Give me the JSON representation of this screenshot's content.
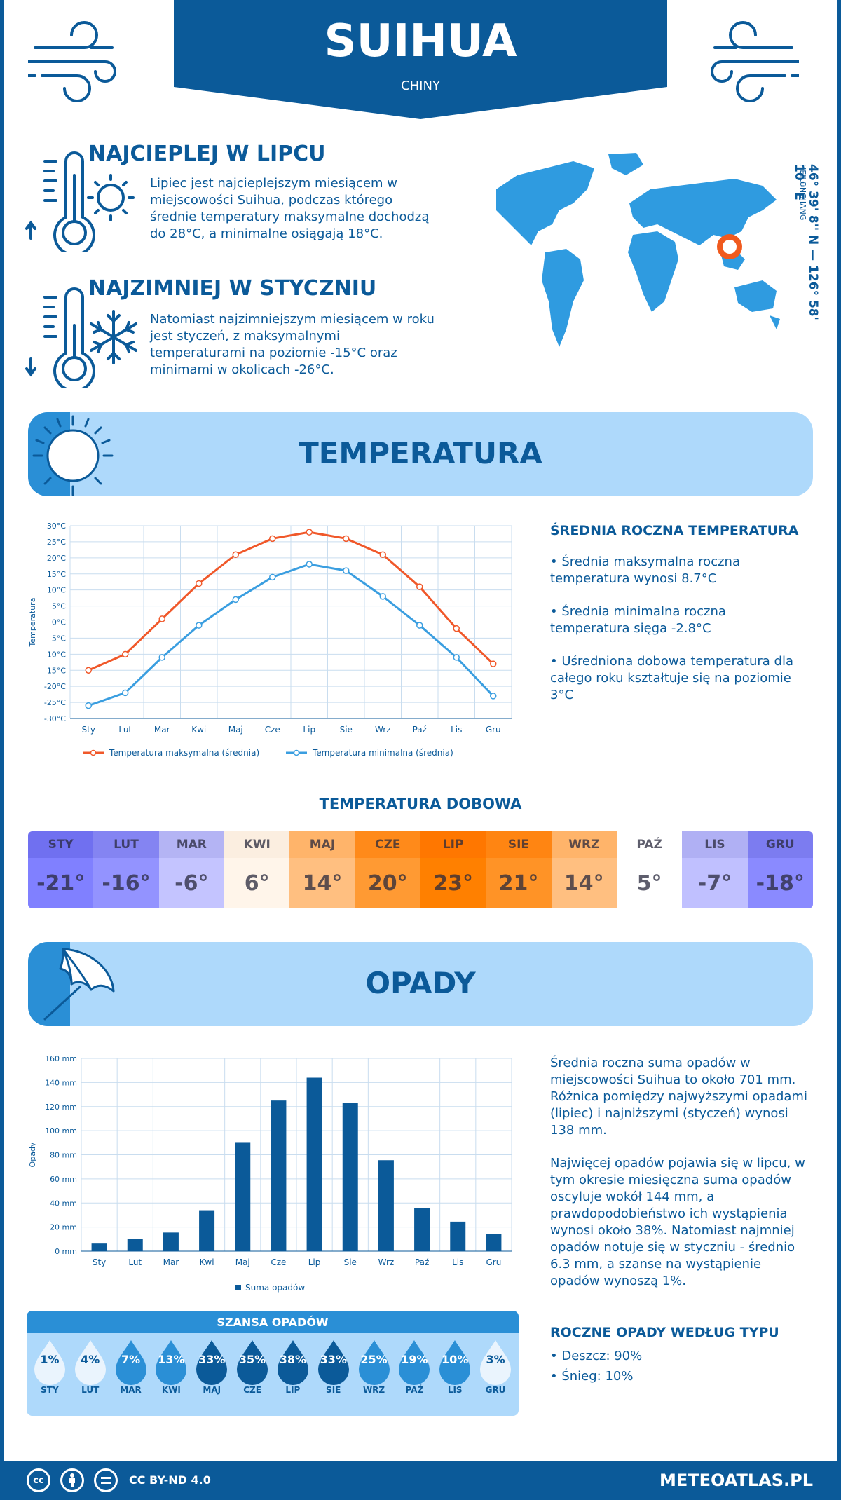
{
  "header": {
    "city": "SUIHUA",
    "country": "CHINY"
  },
  "coords": {
    "text": "46° 39' 8'' N — 126° 58' 10'' E",
    "region": "HEILONGJIANG"
  },
  "warmest": {
    "title": "NAJCIEPLEJ W LIPCU",
    "text": "Lipiec jest najcieplejszym miesiącem w miejscowości Suihua, podczas którego średnie temperatury maksymalne dochodzą do 28°C, a minimalne osiągają 18°C."
  },
  "coldest": {
    "title": "NAJZIMNIEJ W STYCZNIU",
    "text": "Natomiast najzimniejszym miesiącem w roku jest styczeń, z maksymalnymi temperaturami na poziomie -15°C oraz minimami w okolicach -26°C."
  },
  "temperature": {
    "banner": "TEMPERATURA",
    "side_title": "ŚREDNIA ROCZNA TEMPERATURA",
    "bullets": [
      "• Średnia maksymalna roczna temperatura wynosi 8.7°C",
      "• Średnia minimalna roczna temperatura sięga -2.8°C",
      "• Uśredniona dobowa temperatura dla całego roku kształtuje się na poziomie 3°C"
    ],
    "daily_title": "TEMPERATURA DOBOWA",
    "daily": [
      {
        "m": "STY",
        "v": "-21°",
        "hc": "#7070f0",
        "bc": "#8080ff"
      },
      {
        "m": "LUT",
        "v": "-16°",
        "hc": "#8484f2",
        "bc": "#9393ff"
      },
      {
        "m": "MAR",
        "v": "-6°",
        "hc": "#b4b4f4",
        "bc": "#c4c4ff"
      },
      {
        "m": "KWI",
        "v": "6°",
        "hc": "#fbeee0",
        "bc": "#fff5ea"
      },
      {
        "m": "MAJ",
        "v": "14°",
        "hc": "#ffb46a",
        "bc": "#ffbf80"
      },
      {
        "m": "CZE",
        "v": "20°",
        "hc": "#ff8a1a",
        "bc": "#ff9a33"
      },
      {
        "m": "LIP",
        "v": "23°",
        "hc": "#ff7700",
        "bc": "#ff8000"
      },
      {
        "m": "SIE",
        "v": "21°",
        "hc": "#ff8512",
        "bc": "#ff9326"
      },
      {
        "m": "WRZ",
        "v": "14°",
        "hc": "#ffb46a",
        "bc": "#ffbf80"
      },
      {
        "m": "PAŹ",
        "v": "5°",
        "hc": "#ffffff",
        "bc": "#ffffff"
      },
      {
        "m": "LIS",
        "v": "-7°",
        "hc": "#b0b0f4",
        "bc": "#c0c0ff"
      },
      {
        "m": "GRU",
        "v": "-18°",
        "hc": "#7c7cf0",
        "bc": "#8a8aff"
      }
    ]
  },
  "precip": {
    "banner": "OPADY",
    "text1": "Średnia roczna suma opadów w miejscowości Suihua to około 701 mm. Różnica pomiędzy najwyższymi opadami (lipiec) i najniższymi (styczeń) wynosi 138 mm.",
    "text2": "Najwięcej opadów pojawia się w lipcu, w tym okresie miesięczna suma opadów oscyluje wokół 144 mm, a prawdopodobieństwo ich wystąpienia wynosi około 38%. Natomiast najmniej opadów notuje się w styczniu - średnio 6.3 mm, a szanse na wystąpienie opadów wynoszą 1%.",
    "chance_title": "SZANSA OPADÓW",
    "chance": [
      {
        "m": "STY",
        "v": "1%",
        "c": "#eaf4fd",
        "t": "#0b5a99"
      },
      {
        "m": "LUT",
        "v": "4%",
        "c": "#eaf4fd",
        "t": "#0b5a99"
      },
      {
        "m": "MAR",
        "v": "7%",
        "c": "#2a8fd6",
        "t": "#ffffff"
      },
      {
        "m": "KWI",
        "v": "13%",
        "c": "#2a8fd6",
        "t": "#ffffff"
      },
      {
        "m": "MAJ",
        "v": "33%",
        "c": "#0b5a99",
        "t": "#ffffff"
      },
      {
        "m": "CZE",
        "v": "35%",
        "c": "#0b5a99",
        "t": "#ffffff"
      },
      {
        "m": "LIP",
        "v": "38%",
        "c": "#0b5a99",
        "t": "#ffffff"
      },
      {
        "m": "SIE",
        "v": "33%",
        "c": "#0b5a99",
        "t": "#ffffff"
      },
      {
        "m": "WRZ",
        "v": "25%",
        "c": "#2a8fd6",
        "t": "#ffffff"
      },
      {
        "m": "PAŹ",
        "v": "19%",
        "c": "#2a8fd6",
        "t": "#ffffff"
      },
      {
        "m": "LIS",
        "v": "10%",
        "c": "#2a8fd6",
        "t": "#ffffff"
      },
      {
        "m": "GRU",
        "v": "3%",
        "c": "#eaf4fd",
        "t": "#0b5a99"
      }
    ],
    "type_title": "ROCZNE OPADY WEDŁUG TYPU",
    "types": [
      "• Deszcz: 90%",
      "• Śnieg: 10%"
    ]
  },
  "footer": {
    "license": "CC BY-ND 4.0",
    "site": "METEOATLAS.PL",
    "cc_icons": [
      "cc-icon",
      "by-icon",
      "nd-icon"
    ]
  },
  "chart_data": [
    {
      "type": "line",
      "categories": [
        "Sty",
        "Lut",
        "Mar",
        "Kwi",
        "Maj",
        "Cze",
        "Lip",
        "Sie",
        "Wrz",
        "Paź",
        "Lis",
        "Gru"
      ],
      "ylabel": "Temperatura",
      "ylim": [
        -30,
        30
      ],
      "yticks": [
        "30°C",
        "25°C",
        "20°C",
        "15°C",
        "10°C",
        "5°C",
        "0°C",
        "-5°C",
        "-10°C",
        "-15°C",
        "-20°C",
        "-25°C",
        "-30°C"
      ],
      "grid": true,
      "legend": "bottom",
      "series": [
        {
          "name": "Temperatura maksymalna (średnia)",
          "values": [
            -15,
            -10,
            1,
            12,
            21,
            26,
            28,
            26,
            21,
            11,
            -2,
            -13
          ],
          "color": "#f0582a"
        },
        {
          "name": "Temperatura minimalna (średnia)",
          "values": [
            -26,
            -22,
            -11,
            -1,
            7,
            14,
            18,
            16,
            8,
            -1,
            -11,
            -23
          ],
          "color": "#3a9ee0"
        }
      ]
    },
    {
      "type": "bar",
      "categories": [
        "Sty",
        "Lut",
        "Mar",
        "Kwi",
        "Maj",
        "Cze",
        "Lip",
        "Sie",
        "Wrz",
        "Paź",
        "Lis",
        "Gru"
      ],
      "ylabel": "Opady",
      "ylim": [
        0,
        160
      ],
      "yticks": [
        "160 mm",
        "140 mm",
        "120 mm",
        "100 mm",
        "80 mm",
        "60 mm",
        "40 mm",
        "20 mm",
        "0 mm"
      ],
      "grid": true,
      "legend": "bottom",
      "series": [
        {
          "name": "Suma opadów",
          "values": [
            6.3,
            10,
            15.5,
            34,
            90.5,
            125,
            144,
            123,
            75.5,
            36,
            24.5,
            14
          ],
          "color": "#0b5a99"
        }
      ]
    }
  ]
}
